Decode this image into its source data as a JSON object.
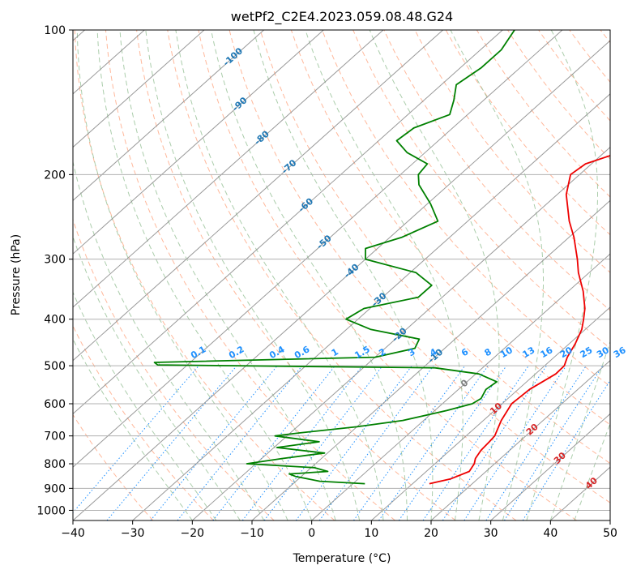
{
  "chart_data": {
    "type": "line",
    "subtype": "skew-t log-p",
    "title": "wetPf2_C2E4.2023.059.08.48.G24",
    "xlabel": "Temperature (°C)",
    "ylabel": "Pressure (hPa)",
    "xlim": [
      -40,
      50
    ],
    "ylim": [
      1050,
      100
    ],
    "x_ticks": [
      -40,
      -30,
      -20,
      -10,
      0,
      10,
      20,
      30,
      40,
      50
    ],
    "y_ticks": [
      100,
      200,
      300,
      400,
      500,
      600,
      700,
      800,
      900,
      1000
    ],
    "grid": true,
    "colors": {
      "temperature": "#ee0000",
      "dewpoint": "#008000",
      "isotherm": "#888888",
      "dry_adiabat": "#ffa07a",
      "moist_adiabat": "#8fbc8f",
      "mixing_ratio": "#1e90ff",
      "grid": "#b0b0b0"
    },
    "series": [
      {
        "name": "Temperature",
        "color": "#ee0000",
        "points": [
          [
            880,
            12.8
          ],
          [
            860,
            15.5
          ],
          [
            830,
            17.2
          ],
          [
            800,
            16.6
          ],
          [
            780,
            15.8
          ],
          [
            750,
            15.2
          ],
          [
            720,
            15.0
          ],
          [
            700,
            14.8
          ],
          [
            650,
            13.0
          ],
          [
            600,
            11.6
          ],
          [
            560,
            11.9
          ],
          [
            520,
            13.4
          ],
          [
            500,
            13.3
          ],
          [
            480,
            12.2
          ],
          [
            450,
            11.0
          ],
          [
            420,
            9.4
          ],
          [
            400,
            7.8
          ],
          [
            380,
            6.0
          ],
          [
            350,
            2.5
          ],
          [
            320,
            -1.8
          ],
          [
            300,
            -4.5
          ],
          [
            270,
            -9.2
          ],
          [
            250,
            -13.0
          ],
          [
            220,
            -18.5
          ],
          [
            200,
            -21.5
          ],
          [
            190,
            -21.0
          ],
          [
            180,
            -17.5
          ],
          [
            170,
            -14.3
          ],
          [
            160,
            -12.2
          ],
          [
            150,
            -11.5
          ],
          [
            140,
            -10.3
          ],
          [
            130,
            -11.5
          ],
          [
            120,
            -10.5
          ],
          [
            110,
            -11.8
          ],
          [
            100,
            -13.0
          ]
        ]
      },
      {
        "name": "Dewpoint",
        "color": "#008000",
        "points": [
          [
            880,
            2.0
          ],
          [
            870,
            -6.0
          ],
          [
            850,
            -11.0
          ],
          [
            840,
            -12.5
          ],
          [
            830,
            -6.5
          ],
          [
            815,
            -9.5
          ],
          [
            800,
            -21.5
          ],
          [
            780,
            -16.5
          ],
          [
            760,
            -10.5
          ],
          [
            740,
            -19.5
          ],
          [
            720,
            -13.5
          ],
          [
            700,
            -22.0
          ],
          [
            690,
            -18.5
          ],
          [
            670,
            -10.0
          ],
          [
            650,
            -3.5
          ],
          [
            620,
            2.0
          ],
          [
            600,
            5.0
          ],
          [
            585,
            5.5
          ],
          [
            560,
            4.6
          ],
          [
            540,
            5.0
          ],
          [
            520,
            0.5
          ],
          [
            505,
            -8.0
          ],
          [
            498,
            -55.0
          ],
          [
            492,
            -56.0
          ],
          [
            480,
            -20.0
          ],
          [
            460,
            -15.0
          ],
          [
            440,
            -16.0
          ],
          [
            420,
            -26.0
          ],
          [
            400,
            -32.0
          ],
          [
            380,
            -31.0
          ],
          [
            360,
            -24.0
          ],
          [
            340,
            -24.0
          ],
          [
            320,
            -29.0
          ],
          [
            300,
            -40.0
          ],
          [
            285,
            -42.0
          ],
          [
            270,
            -38.0
          ],
          [
            250,
            -35.0
          ],
          [
            230,
            -39.5
          ],
          [
            210,
            -45.0
          ],
          [
            200,
            -47.0
          ],
          [
            190,
            -47.5
          ],
          [
            180,
            -53.0
          ],
          [
            170,
            -57.0
          ],
          [
            160,
            -56.5
          ],
          [
            150,
            -53.0
          ],
          [
            140,
            -55.0
          ],
          [
            130,
            -57.5
          ],
          [
            120,
            -56.5
          ],
          [
            110,
            -56.5
          ],
          [
            100,
            -58.0
          ]
        ]
      }
    ],
    "isotherm_labels": [
      {
        "t": -100,
        "label": "-100"
      },
      {
        "t": -90,
        "label": "-90"
      },
      {
        "t": -80,
        "label": "-80"
      },
      {
        "t": -70,
        "label": "-70"
      },
      {
        "t": -60,
        "label": "-60"
      },
      {
        "t": -50,
        "label": "-50"
      },
      {
        "t": -40,
        "label": "-40"
      },
      {
        "t": -30,
        "label": "-30"
      },
      {
        "t": -20,
        "label": "-20"
      },
      {
        "t": -10,
        "label": "-10"
      },
      {
        "t": 0,
        "label": "0"
      },
      {
        "t": 10,
        "label": "10"
      },
      {
        "t": 20,
        "label": "20"
      },
      {
        "t": 30,
        "label": "30"
      },
      {
        "t": 40,
        "label": "40"
      }
    ],
    "mixing_ratio_lines": [
      0.1,
      0.2,
      0.4,
      0.6,
      1,
      1.5,
      2,
      3,
      4,
      6,
      8,
      10,
      13,
      16,
      20,
      25,
      30,
      36
    ],
    "mixing_ratio_labels": [
      "0.1",
      "0.2",
      "0.4",
      "0.6",
      "1",
      "1.5",
      "2",
      "3",
      "4",
      "6",
      "8",
      "10",
      "13",
      "16",
      "20",
      "25",
      "30",
      "36"
    ]
  }
}
